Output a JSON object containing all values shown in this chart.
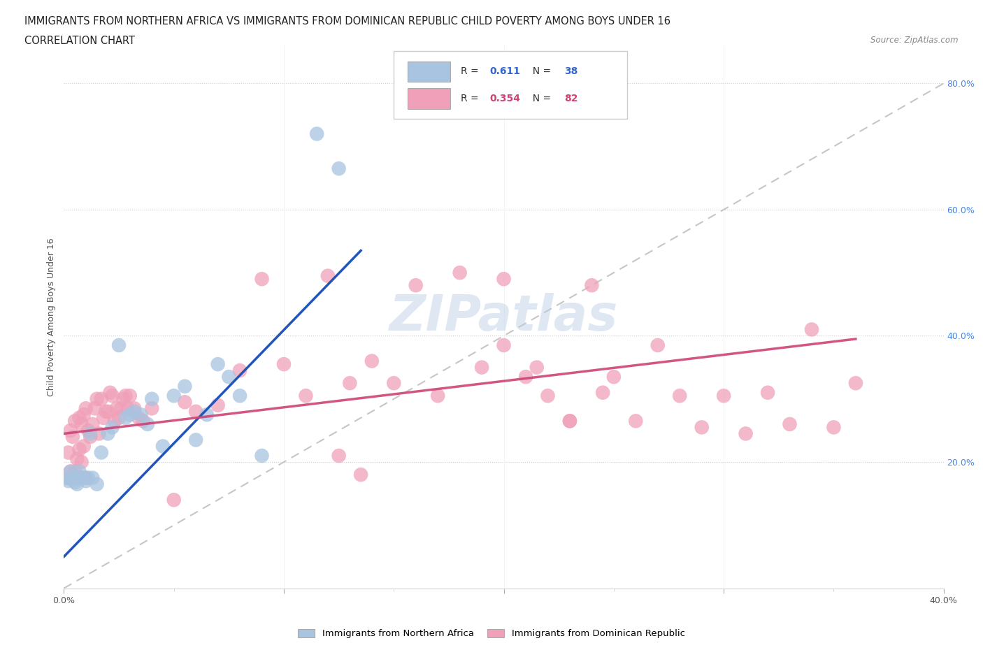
{
  "title_line1": "IMMIGRANTS FROM NORTHERN AFRICA VS IMMIGRANTS FROM DOMINICAN REPUBLIC CHILD POVERTY AMONG BOYS UNDER 16",
  "title_line2": "CORRELATION CHART",
  "source_text": "Source: ZipAtlas.com",
  "ylabel": "Child Poverty Among Boys Under 16",
  "xlim": [
    0.0,
    0.4
  ],
  "ylim": [
    0.0,
    0.86
  ],
  "grid_color": "#cccccc",
  "watermark": "ZIPatlas",
  "blue_color": "#a8c4e0",
  "pink_color": "#f0a0b8",
  "blue_line_color": "#2255bb",
  "pink_line_color": "#cc4477",
  "diag_line_color": "#c0c0c0",
  "R_blue": 0.611,
  "N_blue": 38,
  "R_pink": 0.354,
  "N_pink": 82,
  "legend_label_blue": "Immigrants from Northern Africa",
  "legend_label_pink": "Immigrants from Dominican Republic",
  "blue_x": [
    0.001,
    0.002,
    0.003,
    0.003,
    0.004,
    0.005,
    0.005,
    0.006,
    0.007,
    0.007,
    0.008,
    0.009,
    0.01,
    0.011,
    0.012,
    0.013,
    0.015,
    0.017,
    0.02,
    0.022,
    0.025,
    0.028,
    0.03,
    0.032,
    0.035,
    0.038,
    0.04,
    0.045,
    0.05,
    0.055,
    0.06,
    0.065,
    0.07,
    0.075,
    0.08,
    0.09,
    0.115,
    0.125
  ],
  "blue_y": [
    0.175,
    0.17,
    0.175,
    0.185,
    0.172,
    0.168,
    0.175,
    0.165,
    0.175,
    0.185,
    0.175,
    0.175,
    0.17,
    0.175,
    0.245,
    0.175,
    0.165,
    0.215,
    0.245,
    0.255,
    0.385,
    0.27,
    0.275,
    0.28,
    0.275,
    0.26,
    0.3,
    0.225,
    0.305,
    0.32,
    0.235,
    0.275,
    0.355,
    0.335,
    0.305,
    0.21,
    0.72,
    0.665
  ],
  "pink_x": [
    0.001,
    0.002,
    0.002,
    0.003,
    0.003,
    0.004,
    0.004,
    0.005,
    0.005,
    0.006,
    0.006,
    0.007,
    0.007,
    0.008,
    0.008,
    0.009,
    0.009,
    0.01,
    0.01,
    0.011,
    0.012,
    0.013,
    0.014,
    0.015,
    0.016,
    0.017,
    0.018,
    0.019,
    0.02,
    0.021,
    0.022,
    0.023,
    0.024,
    0.025,
    0.026,
    0.027,
    0.028,
    0.029,
    0.03,
    0.032,
    0.034,
    0.036,
    0.04,
    0.05,
    0.055,
    0.06,
    0.07,
    0.08,
    0.09,
    0.1,
    0.11,
    0.12,
    0.13,
    0.14,
    0.15,
    0.16,
    0.17,
    0.18,
    0.19,
    0.2,
    0.21,
    0.22,
    0.23,
    0.24,
    0.25,
    0.26,
    0.27,
    0.28,
    0.29,
    0.3,
    0.31,
    0.32,
    0.33,
    0.34,
    0.35,
    0.36,
    0.2,
    0.215,
    0.23,
    0.245,
    0.125,
    0.135
  ],
  "pink_y": [
    0.175,
    0.215,
    0.175,
    0.25,
    0.185,
    0.175,
    0.24,
    0.185,
    0.265,
    0.205,
    0.175,
    0.22,
    0.27,
    0.2,
    0.26,
    0.225,
    0.275,
    0.285,
    0.175,
    0.25,
    0.24,
    0.26,
    0.285,
    0.3,
    0.245,
    0.3,
    0.27,
    0.28,
    0.28,
    0.31,
    0.305,
    0.265,
    0.285,
    0.27,
    0.285,
    0.3,
    0.305,
    0.285,
    0.305,
    0.285,
    0.27,
    0.265,
    0.285,
    0.14,
    0.295,
    0.28,
    0.29,
    0.345,
    0.49,
    0.355,
    0.305,
    0.495,
    0.325,
    0.36,
    0.325,
    0.48,
    0.305,
    0.5,
    0.35,
    0.385,
    0.335,
    0.305,
    0.265,
    0.48,
    0.335,
    0.265,
    0.385,
    0.305,
    0.255,
    0.305,
    0.245,
    0.31,
    0.26,
    0.41,
    0.255,
    0.325,
    0.49,
    0.35,
    0.265,
    0.31,
    0.21,
    0.18
  ],
  "blue_line_x": [
    0.0,
    0.135
  ],
  "blue_line_y": [
    0.05,
    0.535
  ],
  "pink_line_x": [
    0.0,
    0.36
  ],
  "pink_line_y": [
    0.245,
    0.395
  ]
}
